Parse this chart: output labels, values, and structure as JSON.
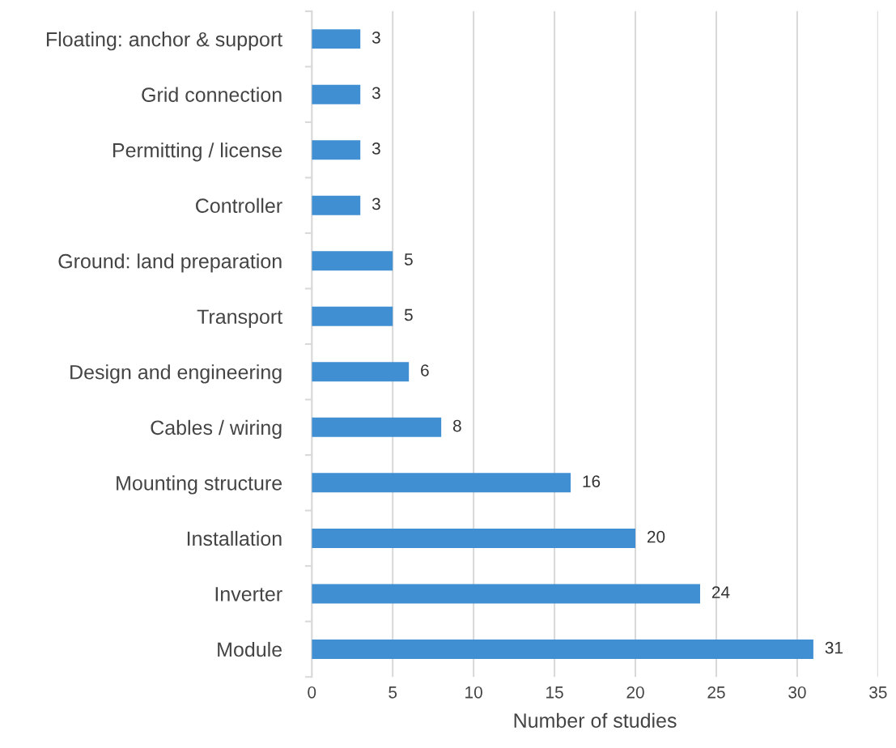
{
  "chart_data": {
    "type": "bar",
    "orientation": "horizontal",
    "xlabel": "Number of studies",
    "categories": [
      "Floating: anchor & support",
      "Grid connection",
      "Permitting / license",
      "Controller",
      "Ground: land preparation",
      "Transport",
      "Design and engineering",
      "Cables / wiring",
      "Mounting structure",
      "Installation",
      "Inverter",
      "Module"
    ],
    "values": [
      3,
      3,
      3,
      3,
      5,
      5,
      6,
      8,
      16,
      20,
      24,
      31
    ],
    "color": "#3f8fd2",
    "xlim": [
      0,
      35
    ],
    "xticks": [
      0,
      5,
      10,
      15,
      20,
      25,
      30,
      35
    ],
    "grid": "x",
    "data_labels": true,
    "legend": false
  }
}
